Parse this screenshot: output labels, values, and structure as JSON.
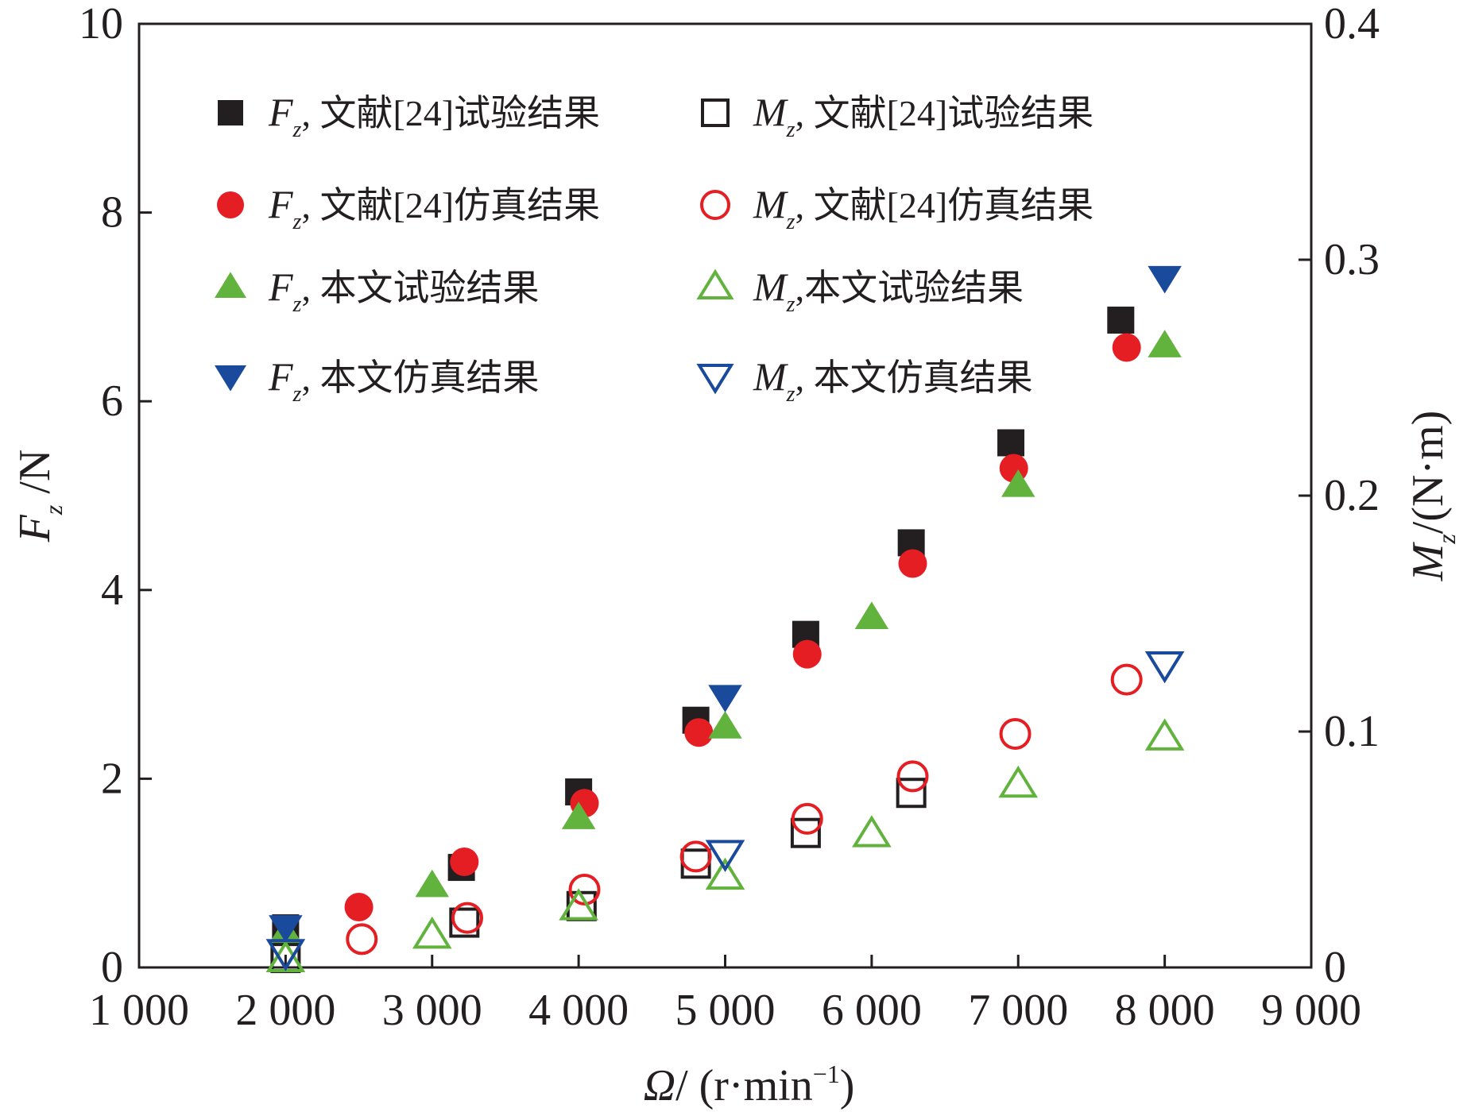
{
  "chart_data": {
    "type": "scatter",
    "xlabel": "Ω/ (r·min⁻¹)",
    "ylabel_left": "Fz /N",
    "ylabel_right": "Mz/(N·m)",
    "xlim": [
      1000,
      9000
    ],
    "ylim_left": [
      0,
      10
    ],
    "ylim_right": [
      0,
      0.4
    ],
    "x_ticks": [
      1000,
      2000,
      3000,
      4000,
      5000,
      6000,
      7000,
      8000,
      9000
    ],
    "x_tick_labels": [
      "1 000",
      "2 000",
      "3 000",
      "4 000",
      "5 000",
      "6 000",
      "7 000",
      "8 000",
      "9 000"
    ],
    "y_left_ticks": [
      0,
      2,
      4,
      6,
      8,
      10
    ],
    "y_left_tick_labels": [
      "0",
      "2",
      "4",
      "6",
      "8",
      "10"
    ],
    "y_right_ticks": [
      0,
      0.1,
      0.2,
      0.3,
      0.4
    ],
    "y_right_tick_labels": [
      "0",
      "0.1",
      "0.2",
      "0.3",
      "0.4"
    ],
    "grid": false,
    "legend_position": "top-left",
    "series": [
      {
        "name": "Fz, 文献[24]试验结果",
        "axis": "left",
        "marker": "square",
        "fill": true,
        "color": "#231f20",
        "x": [
          2000,
          3200,
          4000,
          4800,
          5550,
          6270,
          6950,
          7700
        ],
        "y": [
          0.42,
          1.06,
          1.86,
          2.62,
          3.53,
          4.5,
          5.56,
          6.86
        ]
      },
      {
        "name": "Fz, 文献[24]仿真结果",
        "axis": "left",
        "marker": "circle",
        "fill": true,
        "color": "#e51e24",
        "x": [
          2500,
          3220,
          4040,
          4820,
          5560,
          6280,
          6970,
          7740
        ],
        "y": [
          0.64,
          1.12,
          1.74,
          2.49,
          3.32,
          4.28,
          5.29,
          6.57
        ]
      },
      {
        "name": "Fz, 本文试验结果",
        "axis": "left",
        "marker": "triangle-up",
        "fill": true,
        "color": "#62b33e",
        "x": [
          2000,
          3000,
          4000,
          5000,
          6000,
          7000,
          8000
        ],
        "y": [
          0.38,
          0.88,
          1.6,
          2.56,
          3.72,
          5.12,
          6.6
        ]
      },
      {
        "name": "Fz, 本文仿真结果",
        "axis": "left",
        "marker": "triangle-down",
        "fill": true,
        "color": "#1a4a9c",
        "x": [
          2000,
          5000,
          8000
        ],
        "y": [
          0.42,
          2.86,
          7.3
        ]
      },
      {
        "name": "Mz, 文献[24]试验结果",
        "axis": "right",
        "marker": "square",
        "fill": false,
        "color": "#231f20",
        "x": [
          2000,
          3220,
          4020,
          4800,
          5550,
          6270
        ],
        "y": [
          0.004,
          0.019,
          0.026,
          0.044,
          0.057,
          0.074
        ]
      },
      {
        "name": "Mz, 文献[24]仿真结果",
        "axis": "right",
        "marker": "circle",
        "fill": false,
        "color": "#e51e24",
        "x": [
          2520,
          3240,
          4040,
          4800,
          5560,
          6280,
          6980,
          7740
        ],
        "y": [
          0.012,
          0.021,
          0.033,
          0.047,
          0.063,
          0.081,
          0.099,
          0.122
        ]
      },
      {
        "name": "Mz,本文试验结果",
        "axis": "right",
        "marker": "triangle-up",
        "fill": false,
        "color": "#62b33e",
        "x": [
          2000,
          3000,
          4000,
          5000,
          6000,
          7000,
          8000
        ],
        "y": [
          0.004,
          0.014,
          0.026,
          0.039,
          0.057,
          0.078,
          0.098
        ]
      },
      {
        "name": "Mz, 本文仿真结果",
        "axis": "right",
        "marker": "triangle-down",
        "fill": false,
        "color": "#1a4a9c",
        "x": [
          2000,
          5000,
          8000
        ],
        "y": [
          0.006,
          0.048,
          0.128
        ]
      }
    ]
  }
}
